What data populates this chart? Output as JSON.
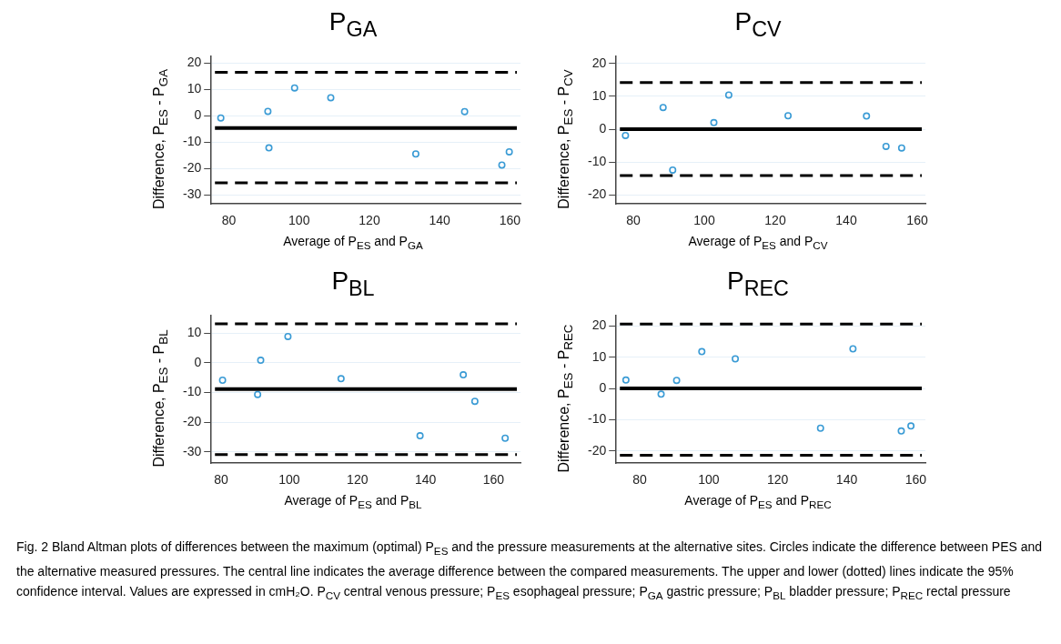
{
  "chart_data": [
    {
      "type": "scatter",
      "title": "P$_{GA}$",
      "xlabel": "Average of P$_{ES}$ and P$_{GA}$",
      "ylabel": "Difference, P$_{ES}$ - P$_{GA}$",
      "x": [
        77.7,
        91.1,
        91.4,
        98.7,
        109.0,
        133.2,
        147.1,
        157.7,
        159.8
      ],
      "values": [
        -0.8,
        1.7,
        -12.2,
        10.6,
        6.9,
        -14.5,
        1.6,
        -18.7,
        -13.7
      ],
      "color": "#3a9bd5",
      "marker": "circle",
      "xlim": [
        75,
        163
      ],
      "xticks": [
        80,
        100,
        120,
        140,
        160
      ],
      "ylim": [
        -33.5,
        22.8
      ],
      "yticks": [
        -30,
        -20,
        -10,
        0,
        10,
        20
      ],
      "grid": "y",
      "legend": false,
      "ref_lines": [
        {
          "axis": "y",
          "value": -4.6,
          "color": "#000000",
          "line_style": "solid"
        },
        {
          "axis": "y",
          "value": 16.5,
          "color": "#000000",
          "line_style": "dashed"
        },
        {
          "axis": "y",
          "value": -25.5,
          "color": "#000000",
          "line_style": "dashed"
        }
      ]
    },
    {
      "type": "scatter",
      "title": "P$_{CV}$",
      "xlabel": "Average of P$_{ES}$ and P$_{CV}$",
      "ylabel": "Difference, P$_{ES}$ - P$_{CV}$",
      "x": [
        77.8,
        88.4,
        91.1,
        102.7,
        106.9,
        123.6,
        145.7,
        151.2,
        155.6
      ],
      "values": [
        -1.9,
        6.6,
        -12.4,
        2.0,
        10.4,
        4.1,
        4.0,
        -5.2,
        -5.7
      ],
      "color": "#3a9bd5",
      "marker": "circle",
      "xlim": [
        75.2,
        162.3
      ],
      "xticks": [
        80,
        100,
        120,
        140,
        160
      ],
      "ylim": [
        -22.7,
        22.3
      ],
      "yticks": [
        -20,
        -10,
        0,
        10,
        20
      ],
      "grid": "y",
      "legend": false,
      "ref_lines": [
        {
          "axis": "y",
          "value": 0,
          "color": "#000000",
          "line_style": "solid"
        },
        {
          "axis": "y",
          "value": 14.2,
          "color": "#000000",
          "line_style": "dashed"
        },
        {
          "axis": "y",
          "value": -14.1,
          "color": "#000000",
          "line_style": "dashed"
        }
      ]
    },
    {
      "type": "scatter",
      "title": "P$_{BL}$",
      "xlabel": "Average of P$_{ES}$ and P$_{BL}$",
      "ylabel": "Difference, P$_{ES}$ - P$_{BL}$",
      "x": [
        80.4,
        90.7,
        91.6,
        99.6,
        115.2,
        138.4,
        151.1,
        154.5,
        163.4
      ],
      "values": [
        -5.9,
        -10.7,
        0.8,
        8.8,
        -5.4,
        -24.6,
        -4.1,
        -13.0,
        -25.4
      ],
      "color": "#3a9bd5",
      "marker": "circle",
      "xlim": [
        77.1,
        167.9
      ],
      "xticks": [
        80,
        100,
        120,
        140,
        160
      ],
      "ylim": [
        -33.8,
        16
      ],
      "yticks": [
        -30,
        -20,
        -10,
        0,
        10
      ],
      "grid": "y",
      "legend": false,
      "ref_lines": [
        {
          "axis": "y",
          "value": -8.9,
          "color": "#000000",
          "line_style": "solid"
        },
        {
          "axis": "y",
          "value": 13.1,
          "color": "#000000",
          "line_style": "dashed"
        },
        {
          "axis": "y",
          "value": -30.9,
          "color": "#000000",
          "line_style": "dashed"
        }
      ]
    },
    {
      "type": "scatter",
      "title": "P$_{REC}$",
      "xlabel": "Average of P$_{ES}$ and P$_{REC}$",
      "ylabel": "Difference, P$_{ES}$ - P$_{REC}$",
      "x": [
        76.0,
        86.2,
        90.7,
        98.0,
        107.7,
        132.4,
        141.8,
        155.8,
        158.6
      ],
      "values": [
        2.7,
        -1.8,
        2.6,
        11.8,
        9.5,
        -12.7,
        12.7,
        -13.6,
        -12.0
      ],
      "color": "#3a9bd5",
      "marker": "circle",
      "xlim": [
        73.2,
        162.8
      ],
      "xticks": [
        80,
        100,
        120,
        140,
        160
      ],
      "ylim": [
        -23.9,
        23.5
      ],
      "yticks": [
        -20,
        -10,
        0,
        10,
        20
      ],
      "grid": "y",
      "legend": false,
      "ref_lines": [
        {
          "axis": "y",
          "value": 0,
          "color": "#000000",
          "line_style": "solid"
        },
        {
          "axis": "y",
          "value": 20.6,
          "color": "#000000",
          "line_style": "dashed"
        },
        {
          "axis": "y",
          "value": -21.4,
          "color": "#000000",
          "line_style": "dashed"
        }
      ],
      "annotations": [
        "Fig. 2 Bland  Altman plots of differences between the maximum (optimal) P$_{ES}$ and the pressure measurements at the alternative sites. Circles indicate the difference between PES and the alternative measured pressures. The central line indicates the average difference between the compared measurements. The upper and lower (dotted) lines indicate the 95% confidence interval. Values are expressed in cmH₂O. P$_{CV}$   central venous pressure; P$_{ES}$   esophageal pressure; P$_{GA}$   gastric pressure; P$_{BL}$   bladder pressure; P$_{REC}$   rectal pressure"
      ]
    }
  ]
}
